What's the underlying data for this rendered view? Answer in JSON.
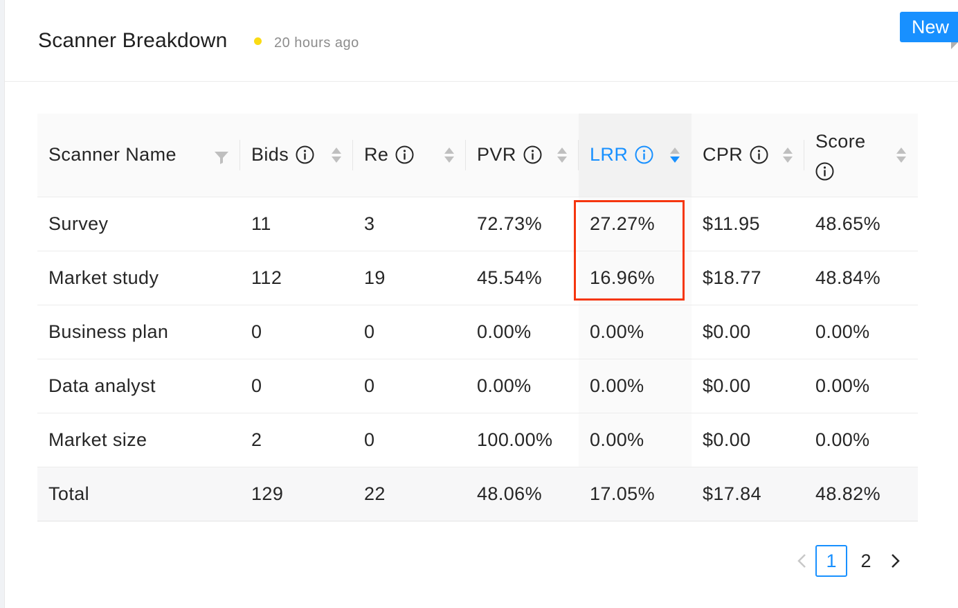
{
  "header": {
    "title": "Scanner Breakdown",
    "updated": "20 hours ago",
    "badge": "New"
  },
  "colors": {
    "accent": "#1890ff",
    "status_dot": "#fadb14",
    "highlight": "#f5360f"
  },
  "table": {
    "columns": [
      {
        "label": "Scanner Name",
        "icon": "filter-icon"
      },
      {
        "label": "Bids",
        "icon": "info-icon"
      },
      {
        "label": "Re",
        "icon": "info-icon"
      },
      {
        "label": "PVR",
        "icon": "info-icon"
      },
      {
        "label": "LRR",
        "icon": "info-icon",
        "sorted": "descending"
      },
      {
        "label": "CPR",
        "icon": "info-icon"
      },
      {
        "label": "Score",
        "icon": "info-icon"
      }
    ],
    "rows": [
      {
        "name": "Survey",
        "bids": "11",
        "re": "3",
        "pvr": "72.73%",
        "lrr": "27.27%",
        "cpr": "$11.95",
        "score": "48.65%"
      },
      {
        "name": "Market study",
        "bids": "112",
        "re": "19",
        "pvr": "45.54%",
        "lrr": "16.96%",
        "cpr": "$18.77",
        "score": "48.84%"
      },
      {
        "name": "Business plan",
        "bids": "0",
        "re": "0",
        "pvr": "0.00%",
        "lrr": "0.00%",
        "cpr": "$0.00",
        "score": "0.00%"
      },
      {
        "name": "Data analyst",
        "bids": "0",
        "re": "0",
        "pvr": "0.00%",
        "lrr": "0.00%",
        "cpr": "$0.00",
        "score": "0.00%"
      },
      {
        "name": "Market size",
        "bids": "2",
        "re": "0",
        "pvr": "100.00%",
        "lrr": "0.00%",
        "cpr": "$0.00",
        "score": "0.00%"
      }
    ],
    "total": {
      "name": "Total",
      "bids": "129",
      "re": "22",
      "pvr": "48.06%",
      "lrr": "17.05%",
      "cpr": "$17.84",
      "score": "48.82%"
    }
  },
  "pagination": {
    "pages": [
      "1",
      "2"
    ],
    "current": "1"
  }
}
